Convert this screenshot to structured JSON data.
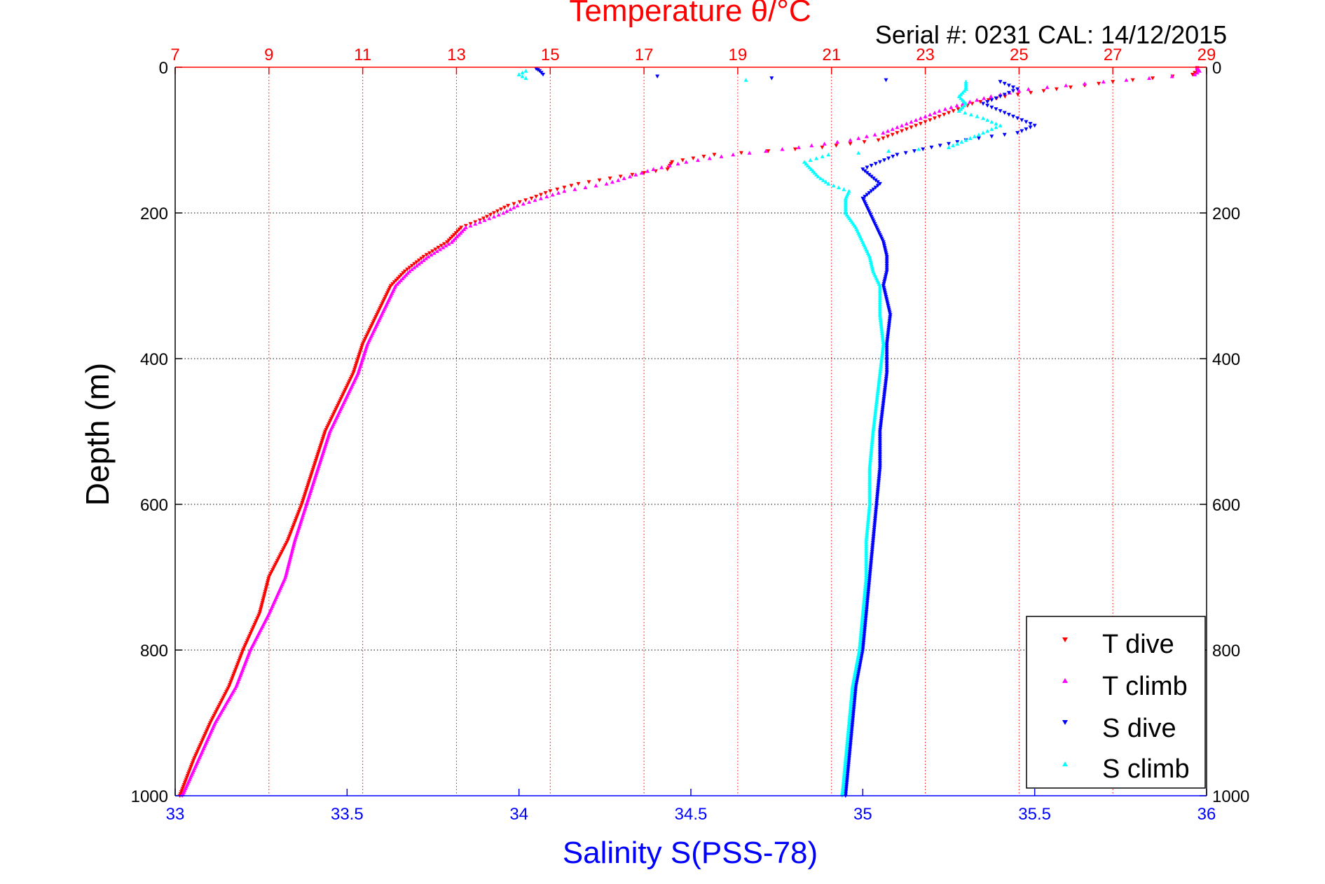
{
  "chart_data": {
    "type": "scatter",
    "title": "Temperature θ/°C",
    "subtitle": "Serial #: 0231  CAL: 14/12/2015",
    "ylabel": "Depth (m)",
    "xlabel_bottom": "Salinity S(PSS-78)",
    "y_axis": {
      "range": [
        0,
        1000
      ],
      "reversed": true,
      "ticks": [
        0,
        200,
        400,
        600,
        800,
        1000
      ]
    },
    "x_top_temperature": {
      "range": [
        7,
        29
      ],
      "ticks": [
        7,
        9,
        11,
        13,
        15,
        17,
        19,
        21,
        23,
        25,
        27,
        29
      ],
      "color": "#ff0000"
    },
    "x_bottom_salinity": {
      "range": [
        33,
        36
      ],
      "ticks": [
        33,
        33.5,
        34,
        34.5,
        35,
        35.5,
        36
      ],
      "color": "#0000ff"
    },
    "grid": true,
    "legend": "bottom-right",
    "series": [
      {
        "name": "T dive",
        "axis": "temperature",
        "color": "#ff0000",
        "marker": "triangle-down",
        "depth": [
          1,
          5,
          10,
          20,
          30,
          40,
          50,
          60,
          70,
          80,
          90,
          100,
          110,
          120,
          130,
          140,
          150,
          160,
          170,
          180,
          190,
          200,
          210,
          220,
          240,
          260,
          280,
          300,
          340,
          380,
          420,
          460,
          500,
          550,
          600,
          650,
          700,
          750,
          800,
          850,
          900,
          950,
          1000
        ],
        "values": [
          28.8,
          28.8,
          28.7,
          27.0,
          25.8,
          24.7,
          24.0,
          23.6,
          23.2,
          22.8,
          22.4,
          22.0,
          20.8,
          18.5,
          17.6,
          17.5,
          16.5,
          15.6,
          15.0,
          14.6,
          14.1,
          13.8,
          13.5,
          13.1,
          12.8,
          12.3,
          11.9,
          11.6,
          11.3,
          11.0,
          10.8,
          10.5,
          10.2,
          9.95,
          9.7,
          9.4,
          9.0,
          8.8,
          8.45,
          8.15,
          7.75,
          7.4,
          7.1
        ]
      },
      {
        "name": "T climb",
        "axis": "temperature",
        "color": "#ff00ff",
        "marker": "triangle-up",
        "depth": [
          1,
          5,
          10,
          20,
          30,
          40,
          50,
          60,
          70,
          80,
          90,
          100,
          110,
          120,
          130,
          140,
          150,
          160,
          170,
          180,
          190,
          200,
          210,
          220,
          240,
          260,
          280,
          300,
          340,
          380,
          420,
          460,
          500,
          550,
          600,
          650,
          700,
          750,
          800,
          850,
          900,
          950,
          1000
        ],
        "values": [
          28.8,
          28.85,
          28.75,
          26.8,
          25.2,
          24.4,
          23.8,
          23.3,
          22.9,
          22.5,
          22.1,
          21.4,
          20.3,
          18.9,
          17.9,
          17.2,
          16.7,
          16.2,
          15.3,
          14.8,
          14.3,
          14.0,
          13.6,
          13.2,
          12.9,
          12.4,
          12.0,
          11.7,
          11.4,
          11.1,
          10.9,
          10.6,
          10.3,
          10.05,
          9.8,
          9.55,
          9.35,
          9.0,
          8.6,
          8.3,
          7.85,
          7.5,
          7.15
        ]
      },
      {
        "name": "S dive",
        "axis": "salinity",
        "color": "#0000ff",
        "marker": "triangle-down",
        "depth": [
          2,
          5,
          10,
          20,
          30,
          40,
          50,
          60,
          70,
          80,
          90,
          100,
          110,
          120,
          140,
          160,
          180,
          200,
          220,
          240,
          260,
          280,
          300,
          340,
          380,
          420,
          460,
          500,
          550,
          600,
          650,
          700,
          750,
          800,
          850,
          900,
          950,
          1000
        ],
        "values": [
          34.05,
          34.06,
          34.07,
          35.4,
          35.45,
          35.4,
          35.35,
          35.4,
          35.45,
          35.5,
          35.45,
          35.3,
          35.2,
          35.1,
          35.0,
          35.05,
          35.0,
          35.02,
          35.04,
          35.06,
          35.07,
          35.07,
          35.06,
          35.08,
          35.07,
          35.07,
          35.06,
          35.05,
          35.05,
          35.04,
          35.03,
          35.02,
          35.01,
          35.0,
          34.98,
          34.97,
          34.96,
          34.95
        ]
      },
      {
        "name": "S climb",
        "axis": "salinity",
        "color": "#00ffff",
        "marker": "triangle-up",
        "depth": [
          5,
          10,
          15,
          20,
          30,
          40,
          50,
          60,
          70,
          80,
          90,
          100,
          110,
          120,
          130,
          140,
          150,
          160,
          170,
          180,
          190,
          200,
          220,
          240,
          260,
          280,
          300,
          340,
          380,
          420,
          460,
          500,
          550,
          600,
          650,
          700,
          750,
          800,
          850,
          900,
          950,
          1000
        ],
        "values": [
          34.02,
          34.0,
          34.02,
          35.3,
          35.3,
          35.28,
          35.3,
          35.28,
          35.35,
          35.4,
          35.35,
          35.3,
          35.25,
          34.9,
          34.83,
          34.85,
          34.87,
          34.9,
          34.96,
          34.95,
          34.95,
          34.95,
          34.98,
          35.0,
          35.02,
          35.03,
          35.05,
          35.05,
          35.06,
          35.05,
          35.04,
          35.03,
          35.02,
          35.02,
          35.01,
          35.01,
          35.0,
          34.99,
          34.97,
          34.96,
          34.95,
          34.94
        ]
      }
    ]
  }
}
